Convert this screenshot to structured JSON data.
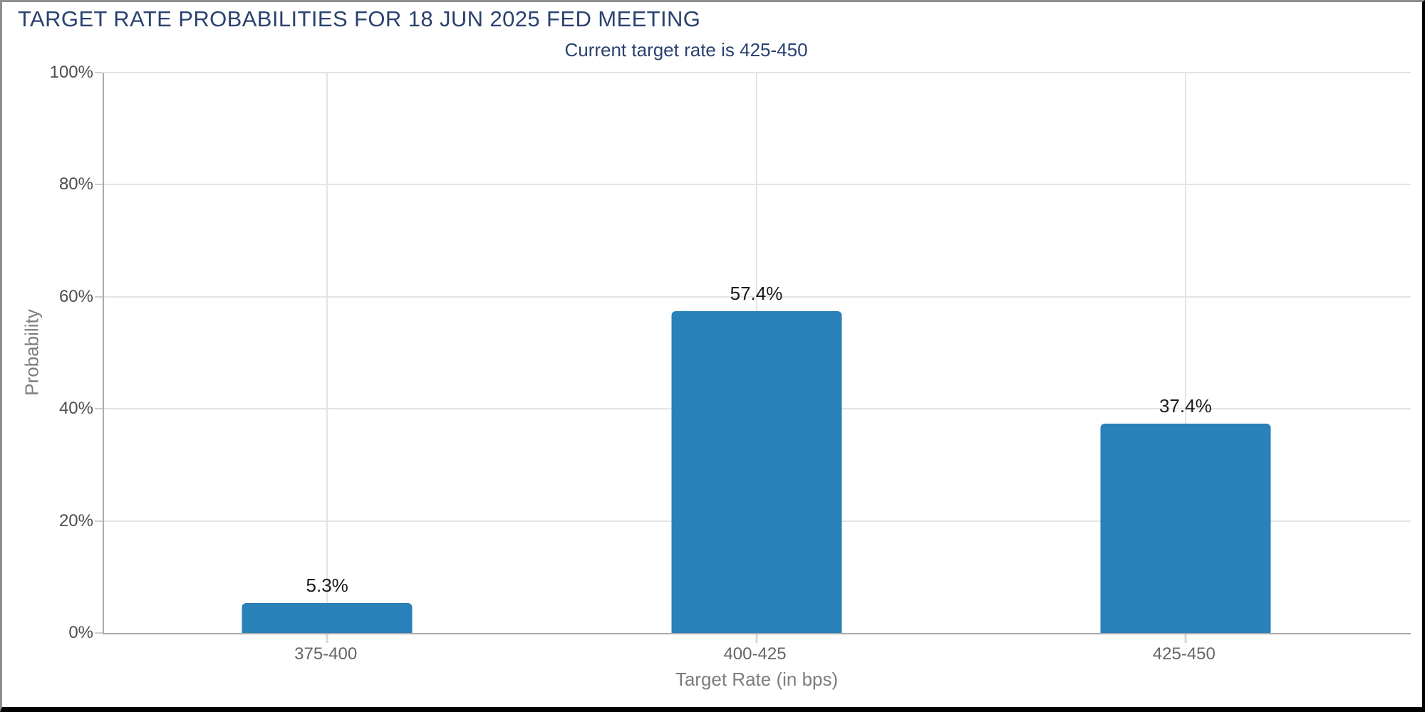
{
  "header": {
    "title": "TARGET RATE PROBABILITIES FOR 18 JUN 2025 FED MEETING",
    "subtitle": "Current target rate is 425-450"
  },
  "chart_data": {
    "type": "bar",
    "title": "TARGET RATE PROBABILITIES FOR 18 JUN 2025 FED MEETING",
    "subtitle": "Current target rate is 425-450",
    "categories": [
      "375-400",
      "400-425",
      "425-450"
    ],
    "values": [
      5.3,
      57.4,
      37.4
    ],
    "value_labels": [
      "5.3%",
      "57.4%",
      "37.4%"
    ],
    "xlabel": "Target Rate (in bps)",
    "ylabel": "Probability",
    "ylim": [
      0,
      100
    ],
    "yticks": [
      0,
      20,
      40,
      60,
      80,
      100
    ],
    "ytick_labels": [
      "0%",
      "20%",
      "40%",
      "60%",
      "80%",
      "100%"
    ],
    "grid": true,
    "legend": "none",
    "bar_color": "#2a80b8",
    "colors": {
      "title_text": "#2b4270",
      "bar_fill": "#2a80b8",
      "gridline": "#e4e4e4",
      "axis_line": "#ababab",
      "tick_label": "#4d4d4d",
      "category_label": "#666666",
      "axis_title": "#7d7d7d",
      "value_label": "#1a1a1a"
    }
  }
}
